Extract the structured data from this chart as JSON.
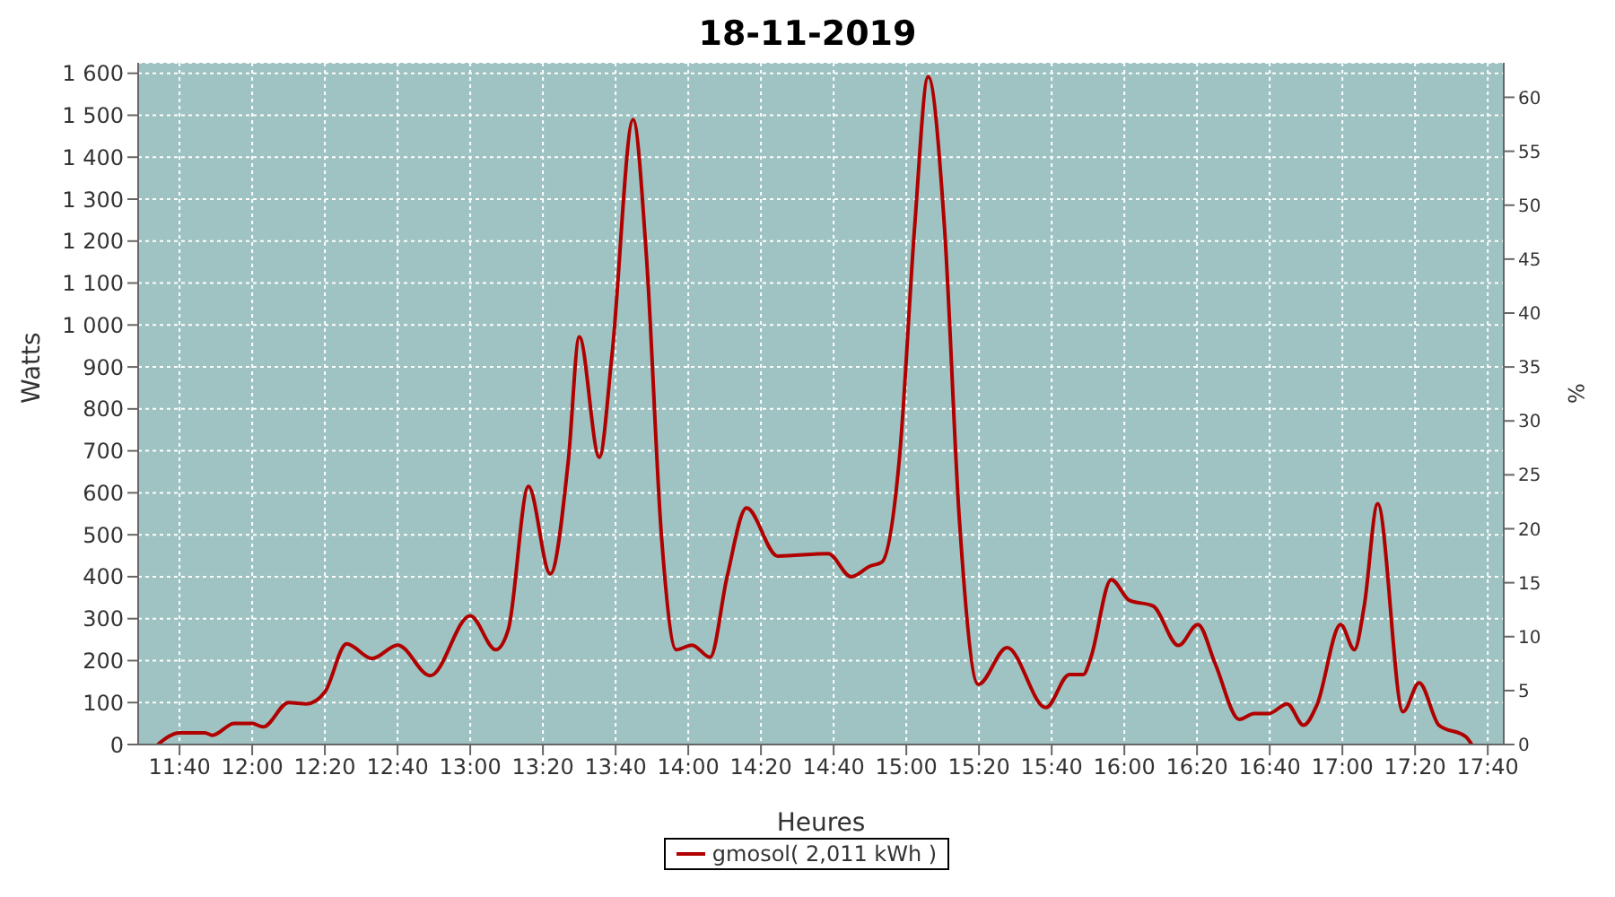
{
  "chart_data": {
    "type": "line",
    "title": "18-11-2019",
    "xlabel": "Heures",
    "ylabel": "Watts",
    "y2label": "%",
    "x": [
      11.567,
      11.667,
      11.783,
      11.817,
      11.917,
      12,
      12.05,
      12.167,
      12.25,
      12.333,
      12.433,
      12.55,
      12.667,
      12.817,
      13,
      13.117,
      13.175,
      13.267,
      13.367,
      13.45,
      13.5,
      13.592,
      13.65,
      13.747,
      13.808,
      13.877,
      13.945,
      14.017,
      14.1,
      14.178,
      14.267,
      14.41,
      14.642,
      14.747,
      14.833,
      14.888,
      14.97,
      15.038,
      15.1,
      15.175,
      15.243,
      15.33,
      15.462,
      15.64,
      15.748,
      15.812,
      15.845,
      15.94,
      16.022,
      16.132,
      16.248,
      16.337,
      16.417,
      16.527,
      16.595,
      16.663,
      16.747,
      16.822,
      16.883,
      16.992,
      17.055,
      17.1,
      17.162,
      17.278,
      17.352,
      17.443,
      17.567,
      17.593
    ],
    "series": [
      {
        "name": "gmosol( 2,011 kWh )",
        "color": "#b00000",
        "values": [
          0,
          28,
          28,
          22,
          50,
          50,
          42,
          100,
          97,
          125,
          240,
          205,
          237,
          164,
          307,
          226,
          275,
          615,
          407,
          678,
          972,
          685,
          928,
          1490,
          1164,
          497,
          226,
          237,
          208,
          400,
          564,
          449,
          455,
          400,
          425,
          435,
          692,
          1233,
          1592,
          1233,
          539,
          143,
          231,
          88,
          167,
          167,
          205,
          393,
          344,
          330,
          236,
          286,
          192,
          60,
          74,
          74,
          97,
          46,
          94,
          286,
          226,
          330,
          574,
          78,
          147,
          46,
          18,
          0
        ]
      }
    ],
    "xlim": [
      11.477,
      17.74
    ],
    "ylim": [
      0,
      1625
    ],
    "y2lim": [
      0,
      63.2
    ],
    "xticks": [
      {
        "value": 11.6667,
        "label": "11:40"
      },
      {
        "value": 12,
        "label": "12:00"
      },
      {
        "value": 12.3333,
        "label": "12:20"
      },
      {
        "value": 12.6667,
        "label": "12:40"
      },
      {
        "value": 13,
        "label": "13:00"
      },
      {
        "value": 13.3333,
        "label": "13:20"
      },
      {
        "value": 13.6667,
        "label": "13:40"
      },
      {
        "value": 14,
        "label": "14:00"
      },
      {
        "value": 14.3333,
        "label": "14:20"
      },
      {
        "value": 14.6667,
        "label": "14:40"
      },
      {
        "value": 15,
        "label": "15:00"
      },
      {
        "value": 15.3333,
        "label": "15:20"
      },
      {
        "value": 15.6667,
        "label": "15:40"
      },
      {
        "value": 16,
        "label": "16:00"
      },
      {
        "value": 16.3333,
        "label": "16:20"
      },
      {
        "value": 16.6667,
        "label": "16:40"
      },
      {
        "value": 17,
        "label": "17:00"
      },
      {
        "value": 17.3333,
        "label": "17:20"
      },
      {
        "value": 17.6667,
        "label": "17:40"
      }
    ],
    "yticks": [
      0,
      100,
      200,
      300,
      400,
      500,
      600,
      700,
      800,
      900,
      {
        "value": 1000,
        "label": "1 000"
      },
      {
        "value": 1100,
        "label": "1 100"
      },
      {
        "value": 1200,
        "label": "1 200"
      },
      {
        "value": 1300,
        "label": "1 300"
      },
      {
        "value": 1400,
        "label": "1 400"
      },
      {
        "value": 1500,
        "label": "1 500"
      },
      {
        "value": 1600,
        "label": "1 600"
      }
    ],
    "y2ticks": [
      0,
      5,
      10,
      15,
      20,
      25,
      30,
      35,
      40,
      45,
      50,
      55,
      60
    ],
    "grid": true,
    "legend": "bottom",
    "marker": "none",
    "line_style": "solid"
  }
}
